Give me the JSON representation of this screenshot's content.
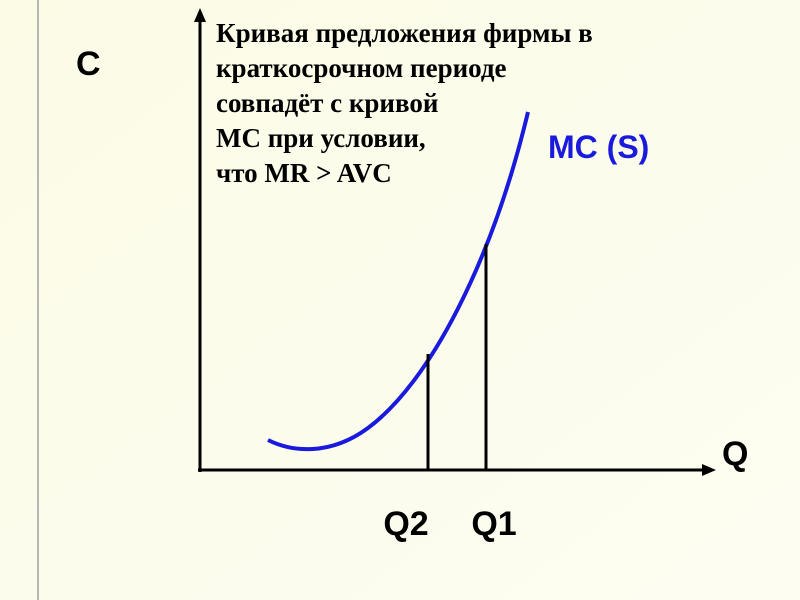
{
  "axes": {
    "y_label": "C",
    "x_label": "Q"
  },
  "caption": {
    "lines": [
      "Кривая предложения фирмы в",
      "краткосрочном периоде",
      "совпадёт с кривой",
      "МС при условии,",
      "что MR > AVC"
    ]
  },
  "curve_label": "MC (S)",
  "markers": [
    "Q2",
    "Q1"
  ]
}
